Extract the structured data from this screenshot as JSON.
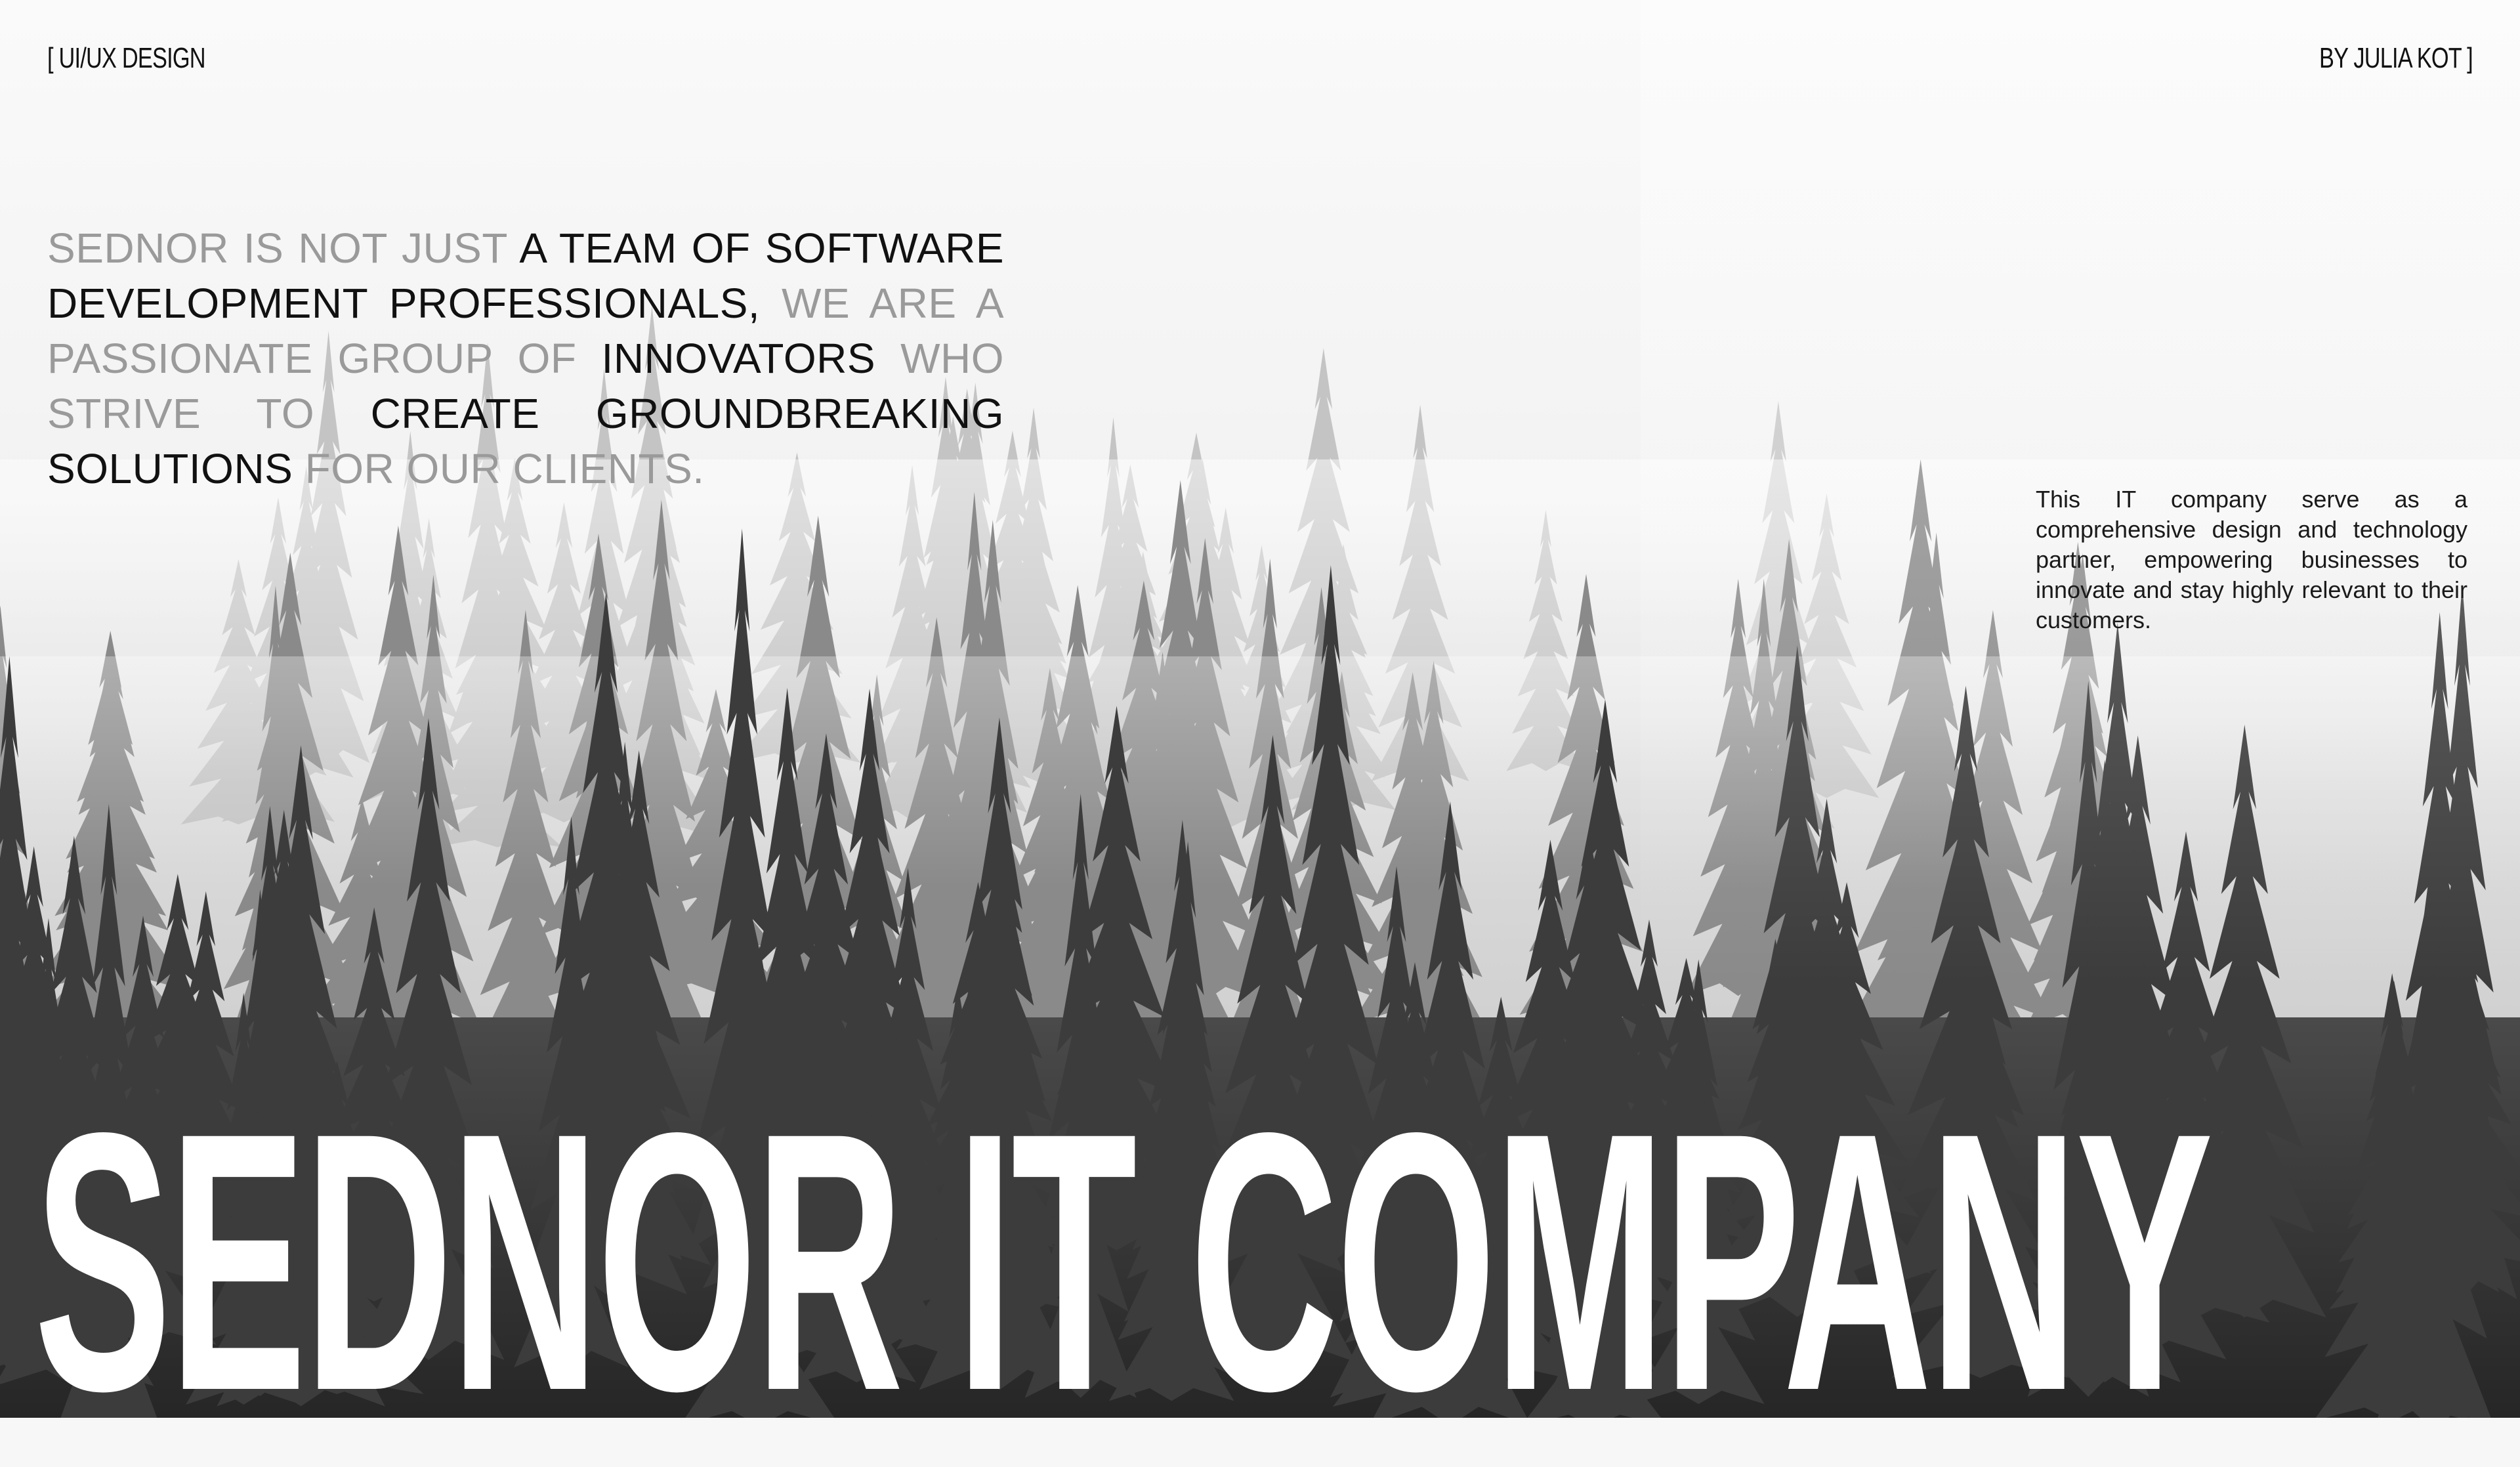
{
  "header": {
    "left_tag": "[ UI/UX DESIGN",
    "right_tag": "BY JULIA KOT ]"
  },
  "intro": [
    {
      "text": "SEDNOR IS NOT JUST ",
      "tone": "muted"
    },
    {
      "text": "A TEAM OF SOFTWARE DEVELOPMENT PROFESSIONALS, ",
      "tone": "strong"
    },
    {
      "text": "WE ARE A PASSIONATE GROUP OF ",
      "tone": "muted"
    },
    {
      "text": "INNOVATORS ",
      "tone": "strong"
    },
    {
      "text": "WHO STRIVE TO ",
      "tone": "muted"
    },
    {
      "text": "CREATE GROUNDBREAKING SOLUTIONS ",
      "tone": "strong"
    },
    {
      "text": "FOR OUR CLIENTS.",
      "tone": "muted"
    }
  ],
  "blurb": "This IT company serve as a comprehensive design and technology partner, empowering businesses to innovate and stay highly relevant to their customers.",
  "headline": "SEDNOR IT COMPANY",
  "colors": {
    "background": "#f7f7f7",
    "text_strong": "#111111",
    "text_muted": "#9a9a9a",
    "headline": "#ffffff"
  },
  "background_image": "foggy-pine-forest"
}
